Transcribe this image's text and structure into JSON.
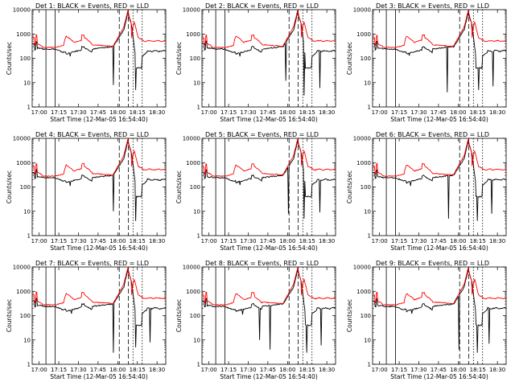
{
  "figure": {
    "background": "#ffffff",
    "events_color": "#000000",
    "lld_color": "#ff0000"
  },
  "chart_data": [
    {
      "type": "line",
      "title": "Det 1: BLACK = Events, RED = LLD",
      "variant": 1
    },
    {
      "type": "line",
      "title": "Det 2: BLACK = Events, RED = LLD",
      "variant": 2
    },
    {
      "type": "line",
      "title": "Det 3: BLACK = Events, RED = LLD",
      "variant": 3
    },
    {
      "type": "line",
      "title": "Det 4: BLACK = Events, RED = LLD",
      "variant": 4
    },
    {
      "type": "line",
      "title": "Det 5: BLACK = Events, RED = LLD",
      "variant": 5
    },
    {
      "type": "line",
      "title": "Det 6: BLACK = Events, RED = LLD",
      "variant": 6
    },
    {
      "type": "line",
      "title": "Det 7: BLACK = Events, RED = LLD",
      "variant": 7
    },
    {
      "type": "line",
      "title": "Det 8: BLACK = Events, RED = LLD",
      "variant": 8
    },
    {
      "type": "line",
      "title": "Det 9: BLACK = Events, RED = LLD",
      "variant": 9
    }
  ],
  "shared_axes": {
    "ylabel": "Counts/sec",
    "xlabel": "Start Time (12-Mar-05 16:54:40)",
    "y_scale": "log",
    "ylim": [
      1,
      10000
    ],
    "y_ticks": [
      1,
      10,
      100,
      1000,
      10000
    ],
    "y_tick_labels": [
      "1",
      "10",
      "100",
      "1000",
      "10000"
    ],
    "x_ticks": [
      "17:00",
      "17:15",
      "17:30",
      "17:45",
      "18:00",
      "18:15",
      "18:30"
    ],
    "x_tick_minutes": [
      5.33,
      20.33,
      35.33,
      50.33,
      65.33,
      80.33,
      95.33
    ],
    "xlim_minutes": [
      0,
      102
    ],
    "solid_markers_minutes": [
      10.5,
      17.5
    ],
    "dashed_markers_minutes": [
      66.5,
      73.5
    ],
    "dotted_markers_minutes": [
      77,
      84
    ]
  }
}
